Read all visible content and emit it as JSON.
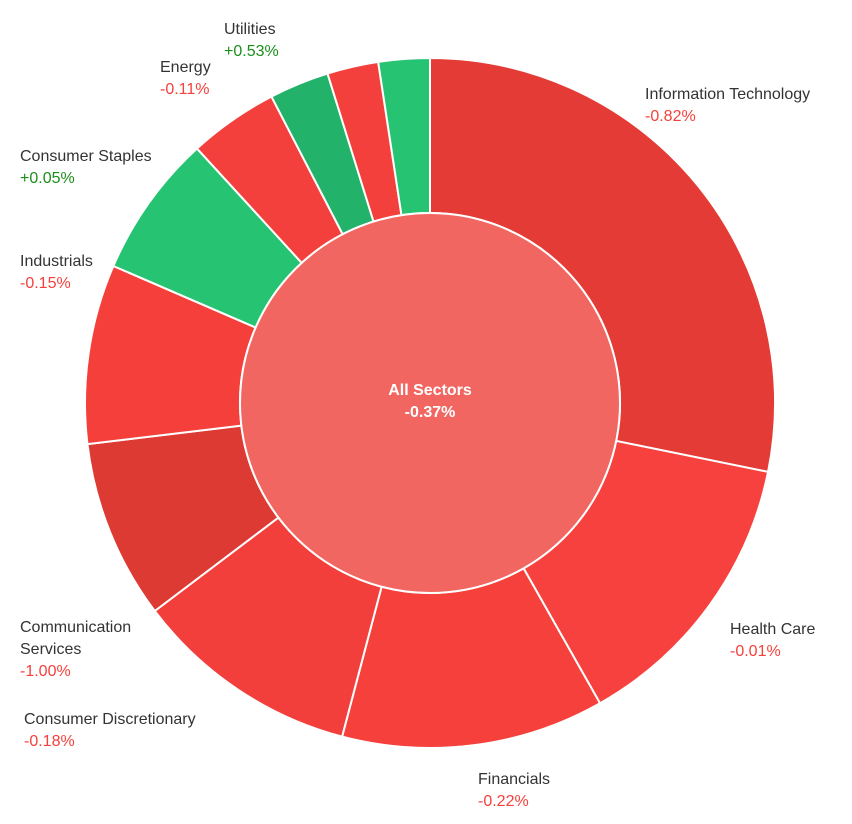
{
  "chart_data": {
    "type": "donut",
    "center_label": "All Sectors",
    "center_change": "-0.37%",
    "center_color": "#f26661",
    "categories": [
      "Information Technology",
      "Health Care",
      "Financials",
      "Consumer Discretionary",
      "Communication Services",
      "Industrials",
      "Consumer Staples",
      "Energy",
      null,
      null,
      "Utilities"
    ],
    "changes": [
      "-0.82%",
      "-0.01%",
      "-0.22%",
      "-0.18%",
      "-1.00%",
      "-0.15%",
      "+0.05%",
      "-0.11%",
      null,
      null,
      "+0.53%"
    ],
    "values": [
      28.2,
      13.6,
      12.3,
      10.6,
      8.4,
      8.4,
      6.7,
      4.2,
      2.8,
      2.4,
      2.4
    ],
    "colors": [
      "#e43b36",
      "#f7413e",
      "#f5403b",
      "#f33f3b",
      "#dd3a34",
      "#f53f3b",
      "#26c472",
      "#f4403c",
      "#22b26a",
      "#f4403c",
      "#26c472"
    ]
  }
}
